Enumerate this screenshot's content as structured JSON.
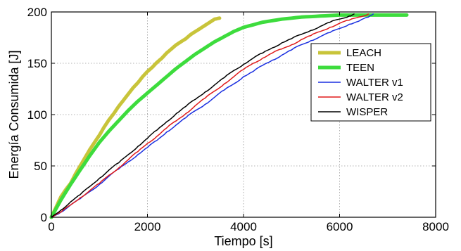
{
  "chart_data": {
    "type": "line",
    "title": "",
    "xlabel": "Tiempo [s]",
    "ylabel": "Energía Consumida [J]",
    "xlim": [
      0,
      8000
    ],
    "ylim": [
      0,
      200
    ],
    "xticks": [
      0,
      2000,
      4000,
      6000,
      8000
    ],
    "yticks": [
      0,
      50,
      100,
      150,
      200
    ],
    "grid": true,
    "legend_position": "right",
    "series": [
      {
        "name": "LEACH",
        "color": "#c8c43a",
        "width": "thick",
        "x": [
          0,
          100,
          200,
          300,
          400,
          500,
          600,
          700,
          800,
          900,
          1000,
          1100,
          1200,
          1300,
          1400,
          1500,
          1600,
          1700,
          1800,
          1900,
          2000,
          2100,
          2200,
          2300,
          2400,
          2500,
          2600,
          2700,
          2800,
          2900,
          3000,
          3100,
          3200,
          3300,
          3400,
          3500
        ],
        "y": [
          0,
          10,
          20,
          27,
          33,
          42,
          50,
          58,
          66,
          73,
          80,
          88,
          95,
          101,
          108,
          114,
          120,
          126,
          131,
          137,
          142,
          146,
          151,
          155,
          160,
          164,
          168,
          171,
          174,
          178,
          181,
          184,
          187,
          190,
          193,
          194
        ]
      },
      {
        "name": "TEEN",
        "color": "#3ddc3d",
        "width": "thick",
        "x": [
          0,
          200,
          400,
          600,
          800,
          1000,
          1200,
          1400,
          1600,
          1800,
          2000,
          2200,
          2400,
          2600,
          2800,
          3000,
          3200,
          3400,
          3600,
          3800,
          4000,
          4400,
          4800,
          5200,
          5600,
          6000,
          6400,
          6800,
          7200,
          7400
        ],
        "y": [
          0,
          17,
          32,
          46,
          60,
          73,
          84,
          94,
          104,
          113,
          121,
          129,
          137,
          145,
          152,
          159,
          165,
          171,
          176,
          181,
          185,
          190,
          193,
          195,
          196,
          197,
          197,
          197,
          197,
          197
        ]
      },
      {
        "name": "WALTER v1",
        "color": "#1a2fe0",
        "width": "thin",
        "x": [
          0,
          200,
          400,
          600,
          800,
          1000,
          1200,
          1400,
          1600,
          1800,
          2000,
          2200,
          2400,
          2600,
          2800,
          3000,
          3200,
          3400,
          3600,
          3800,
          4000,
          4200,
          4400,
          4600,
          4800,
          5000,
          5200,
          5400,
          5600,
          5800,
          6000,
          6200,
          6400,
          6600,
          6700
        ],
        "y": [
          0,
          5,
          12,
          18,
          25,
          32,
          40,
          47,
          54,
          61,
          68,
          75,
          83,
          90,
          97,
          104,
          110,
          117,
          124,
          130,
          137,
          142,
          148,
          153,
          158,
          163,
          168,
          172,
          176,
          180,
          184,
          188,
          191,
          195,
          198
        ]
      },
      {
        "name": "WALTER v2",
        "color": "#e01a1a",
        "width": "thin",
        "x": [
          0,
          200,
          400,
          600,
          800,
          1000,
          1200,
          1400,
          1600,
          1800,
          2000,
          2200,
          2400,
          2600,
          2800,
          3000,
          3200,
          3400,
          3600,
          3800,
          4000,
          4200,
          4400,
          4600,
          4800,
          5000,
          5200,
          5400,
          5600,
          5800,
          6000,
          6200,
          6400,
          6600
        ],
        "y": [
          0,
          5,
          12,
          19,
          26,
          33,
          41,
          48,
          56,
          64,
          72,
          79,
          87,
          94,
          101,
          109,
          116,
          123,
          130,
          137,
          144,
          150,
          155,
          160,
          164,
          168,
          173,
          177,
          181,
          185,
          189,
          192,
          195,
          198
        ]
      },
      {
        "name": "WISPER",
        "color": "#000000",
        "width": "thin",
        "x": [
          0,
          200,
          400,
          600,
          800,
          1000,
          1200,
          1400,
          1600,
          1800,
          2000,
          2200,
          2400,
          2600,
          2800,
          3000,
          3200,
          3400,
          3600,
          3800,
          4000,
          4200,
          4400,
          4600,
          4800,
          5000,
          5200,
          5400,
          5600,
          5800,
          6000,
          6200,
          6300
        ],
        "y": [
          0,
          7,
          15,
          22,
          30,
          38,
          46,
          53,
          61,
          69,
          77,
          85,
          93,
          101,
          108,
          115,
          122,
          129,
          136,
          143,
          149,
          155,
          160,
          165,
          170,
          174,
          178,
          182,
          186,
          190,
          193,
          196,
          198
        ]
      }
    ]
  }
}
